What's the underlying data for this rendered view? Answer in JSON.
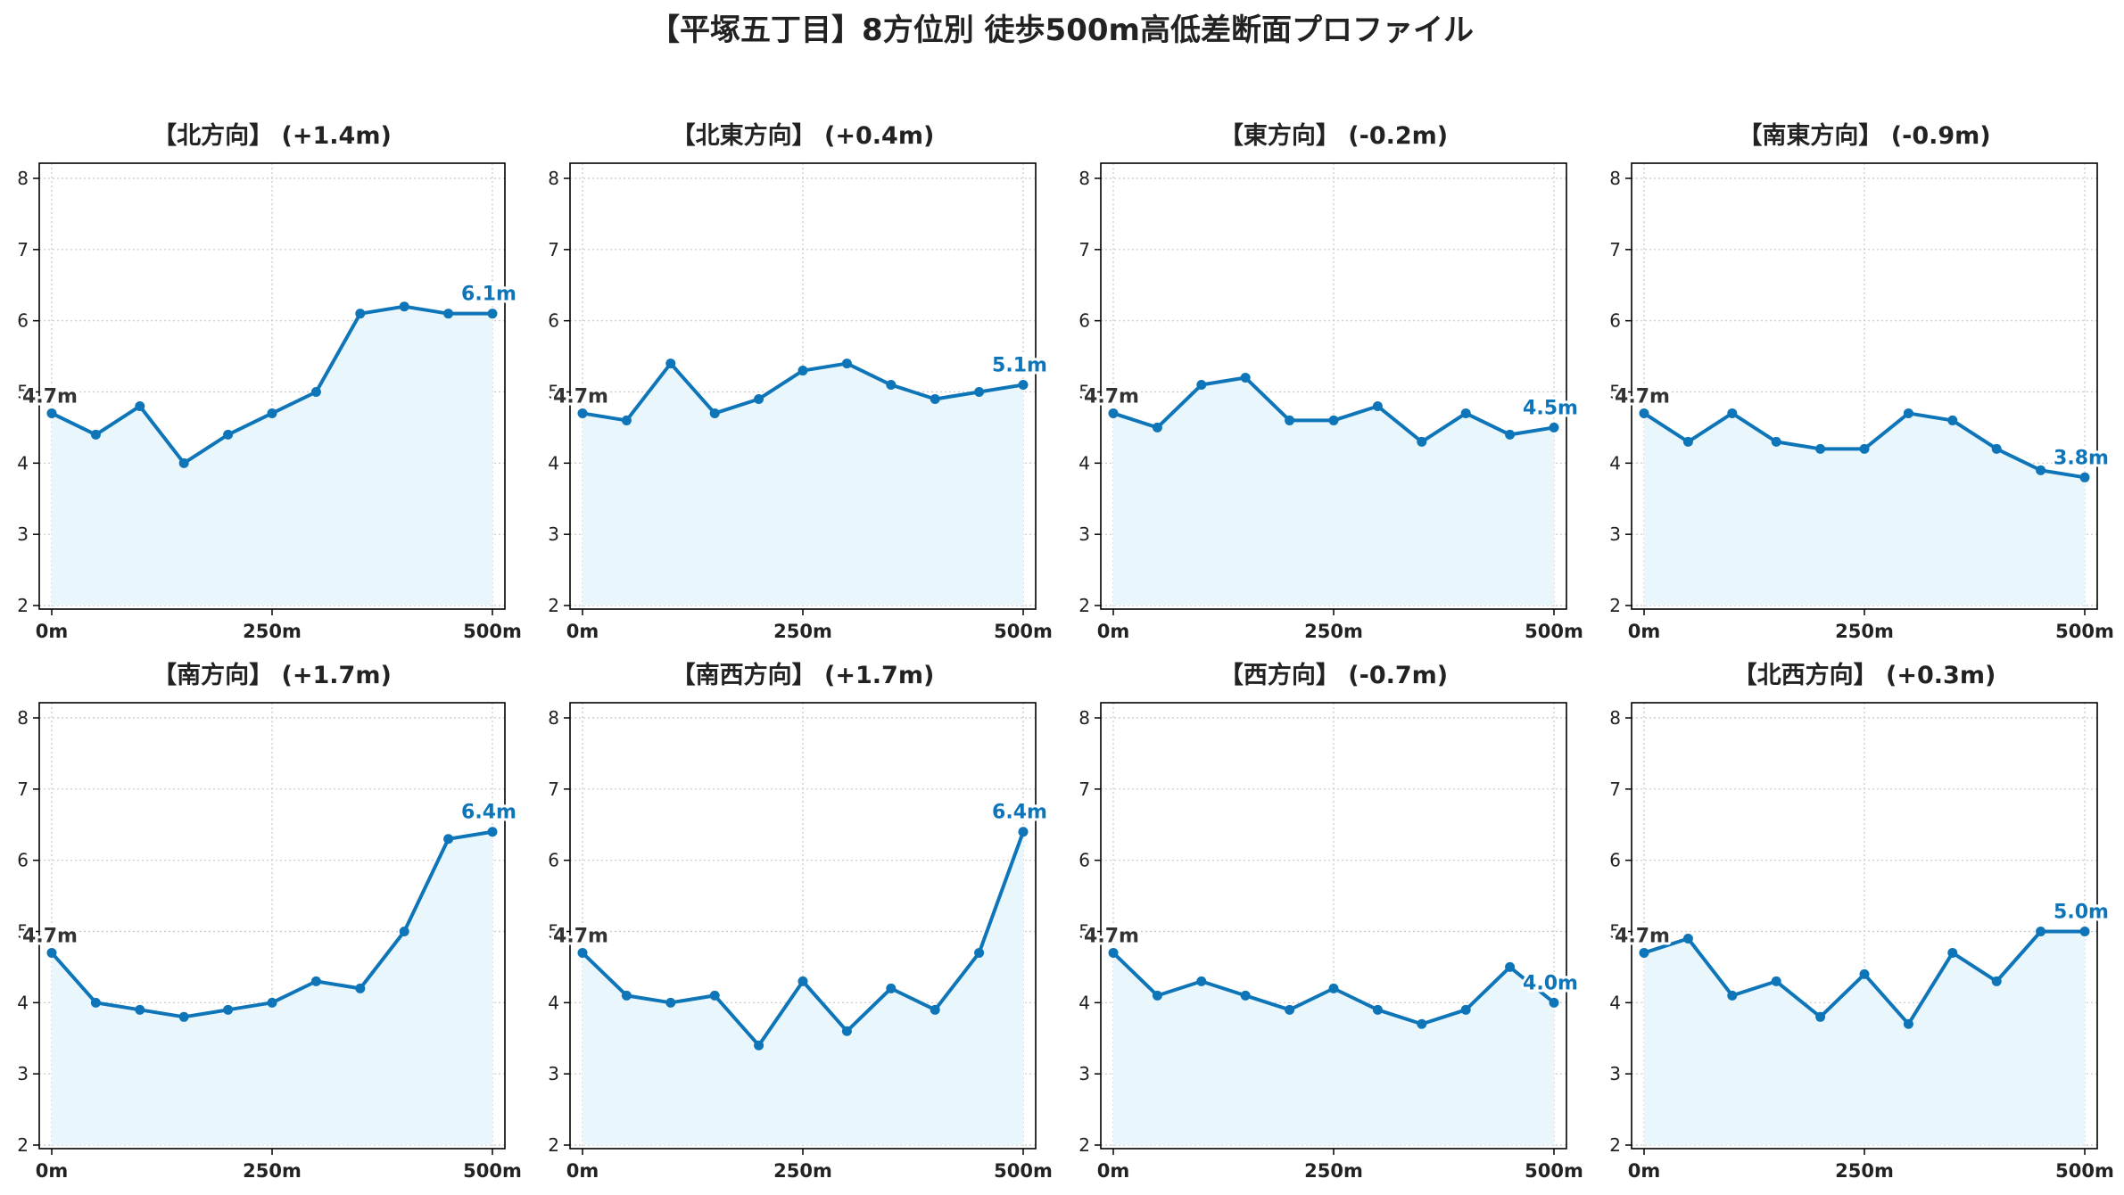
{
  "title": "【平塚五丁目】8方位別 徒歩500m高低差断面プロファイル",
  "colors": {
    "line": "#0e75b8",
    "fill": "#e9f6fc",
    "end_label": "#0e75b8",
    "start_label": "#333333",
    "grid": "#c8c8c8",
    "axis": "#000000"
  },
  "chart_data": [
    {
      "type": "area",
      "title": "【北方向】 (+1.4m)",
      "x": [
        0,
        50,
        100,
        150,
        200,
        250,
        300,
        350,
        400,
        450,
        500
      ],
      "y": [
        4.7,
        4.4,
        4.8,
        4.0,
        4.4,
        4.7,
        5.0,
        6.1,
        6.2,
        6.1,
        6.1
      ],
      "x_tick_labels": [
        "0m",
        "250m",
        "500m"
      ],
      "y_tick_labels": [
        "2",
        "3",
        "4",
        "5",
        "6",
        "7",
        "8"
      ],
      "start_label": "4.7m",
      "end_label": "6.1m",
      "xlim": [
        0,
        500
      ],
      "ylim": [
        2,
        8
      ],
      "grid": true
    },
    {
      "type": "area",
      "title": "【北東方向】 (+0.4m)",
      "x": [
        0,
        50,
        100,
        150,
        200,
        250,
        300,
        350,
        400,
        450,
        500
      ],
      "y": [
        4.7,
        4.6,
        5.4,
        4.7,
        4.9,
        5.3,
        5.4,
        5.1,
        4.9,
        5.0,
        5.1
      ],
      "x_tick_labels": [
        "0m",
        "250m",
        "500m"
      ],
      "y_tick_labels": [
        "2",
        "3",
        "4",
        "5",
        "6",
        "7",
        "8"
      ],
      "start_label": "4.7m",
      "end_label": "5.1m",
      "xlim": [
        0,
        500
      ],
      "ylim": [
        2,
        8
      ],
      "grid": true
    },
    {
      "type": "area",
      "title": "【東方向】 (-0.2m)",
      "x": [
        0,
        50,
        100,
        150,
        200,
        250,
        300,
        350,
        400,
        450,
        500
      ],
      "y": [
        4.7,
        4.5,
        5.1,
        5.2,
        4.6,
        4.6,
        4.8,
        4.3,
        4.7,
        4.4,
        4.5
      ],
      "x_tick_labels": [
        "0m",
        "250m",
        "500m"
      ],
      "y_tick_labels": [
        "2",
        "3",
        "4",
        "5",
        "6",
        "7",
        "8"
      ],
      "start_label": "4.7m",
      "end_label": "4.5m",
      "xlim": [
        0,
        500
      ],
      "ylim": [
        2,
        8
      ],
      "grid": true
    },
    {
      "type": "area",
      "title": "【南東方向】 (-0.9m)",
      "x": [
        0,
        50,
        100,
        150,
        200,
        250,
        300,
        350,
        400,
        450,
        500
      ],
      "y": [
        4.7,
        4.3,
        4.7,
        4.3,
        4.2,
        4.2,
        4.7,
        4.6,
        4.2,
        3.9,
        3.8
      ],
      "x_tick_labels": [
        "0m",
        "250m",
        "500m"
      ],
      "y_tick_labels": [
        "2",
        "3",
        "4",
        "5",
        "6",
        "7",
        "8"
      ],
      "start_label": "4.7m",
      "end_label": "3.8m",
      "xlim": [
        0,
        500
      ],
      "ylim": [
        2,
        8
      ],
      "grid": true
    },
    {
      "type": "area",
      "title": "【南方向】 (+1.7m)",
      "x": [
        0,
        50,
        100,
        150,
        200,
        250,
        300,
        350,
        400,
        450,
        500
      ],
      "y": [
        4.7,
        4.0,
        3.9,
        3.8,
        3.9,
        4.0,
        4.3,
        4.2,
        5.0,
        6.3,
        6.4
      ],
      "x_tick_labels": [
        "0m",
        "250m",
        "500m"
      ],
      "y_tick_labels": [
        "2",
        "3",
        "4",
        "5",
        "6",
        "7",
        "8"
      ],
      "start_label": "4.7m",
      "end_label": "6.4m",
      "xlim": [
        0,
        500
      ],
      "ylim": [
        2,
        8
      ],
      "grid": true
    },
    {
      "type": "area",
      "title": "【南西方向】 (+1.7m)",
      "x": [
        0,
        50,
        100,
        150,
        200,
        250,
        300,
        350,
        400,
        450,
        500
      ],
      "y": [
        4.7,
        4.1,
        4.0,
        4.1,
        3.4,
        4.3,
        3.6,
        4.2,
        3.9,
        4.7,
        6.4
      ],
      "x_tick_labels": [
        "0m",
        "250m",
        "500m"
      ],
      "y_tick_labels": [
        "2",
        "3",
        "4",
        "5",
        "6",
        "7",
        "8"
      ],
      "start_label": "4.7m",
      "end_label": "6.4m",
      "xlim": [
        0,
        500
      ],
      "ylim": [
        2,
        8
      ],
      "grid": true
    },
    {
      "type": "area",
      "title": "【西方向】 (-0.7m)",
      "x": [
        0,
        50,
        100,
        150,
        200,
        250,
        300,
        350,
        400,
        450,
        500
      ],
      "y": [
        4.7,
        4.1,
        4.3,
        4.1,
        3.9,
        4.2,
        3.9,
        3.7,
        3.9,
        4.5,
        4.0
      ],
      "x_tick_labels": [
        "0m",
        "250m",
        "500m"
      ],
      "y_tick_labels": [
        "2",
        "3",
        "4",
        "5",
        "6",
        "7",
        "8"
      ],
      "start_label": "4.7m",
      "end_label": "4.0m",
      "xlim": [
        0,
        500
      ],
      "ylim": [
        2,
        8
      ],
      "grid": true
    },
    {
      "type": "area",
      "title": "【北西方向】 (+0.3m)",
      "x": [
        0,
        50,
        100,
        150,
        200,
        250,
        300,
        350,
        400,
        450,
        500
      ],
      "y": [
        4.7,
        4.9,
        4.1,
        4.3,
        3.8,
        4.4,
        3.7,
        4.7,
        4.3,
        5.0,
        5.0
      ],
      "x_tick_labels": [
        "0m",
        "250m",
        "500m"
      ],
      "y_tick_labels": [
        "2",
        "3",
        "4",
        "5",
        "6",
        "7",
        "8"
      ],
      "start_label": "4.7m",
      "end_label": "5.0m",
      "xlim": [
        0,
        500
      ],
      "ylim": [
        2,
        8
      ],
      "grid": true
    }
  ]
}
